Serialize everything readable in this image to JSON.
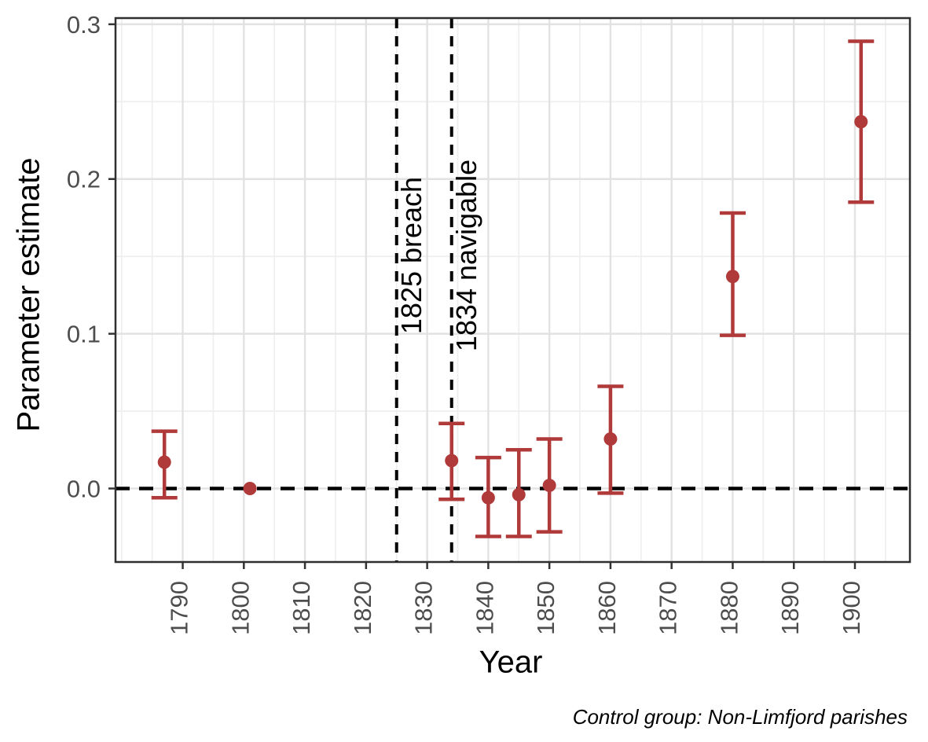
{
  "chart_data": {
    "type": "scatter",
    "title": "",
    "xlabel": "Year",
    "ylabel": "Parameter estimate",
    "caption": "Control group: Non-Limfjord parishes",
    "xlim": [
      1779,
      1909
    ],
    "ylim": [
      -0.0475,
      0.304
    ],
    "x_ticks": [
      1790,
      1800,
      1810,
      1820,
      1830,
      1840,
      1850,
      1860,
      1870,
      1880,
      1890,
      1900
    ],
    "x_minor_step": 5,
    "y_ticks": [
      {
        "value": 0.0,
        "label": "0.0"
      },
      {
        "value": 0.1,
        "label": "0.1"
      },
      {
        "value": 0.2,
        "label": "0.2"
      },
      {
        "value": 0.3,
        "label": "0.3"
      }
    ],
    "y_minor": [
      0.05,
      0.15,
      0.25
    ],
    "grid": "major+minor",
    "legend": "none",
    "series": [
      {
        "name": "parameter-estimates-with-95pct-ci",
        "points": [
          {
            "x": 1787,
            "y": 0.017,
            "ci_low": -0.006,
            "ci_high": 0.037
          },
          {
            "x": 1801,
            "y": 0.0,
            "ci_low": null,
            "ci_high": null,
            "reference": true
          },
          {
            "x": 1834,
            "y": 0.018,
            "ci_low": -0.007,
            "ci_high": 0.042
          },
          {
            "x": 1840,
            "y": -0.006,
            "ci_low": -0.031,
            "ci_high": 0.02
          },
          {
            "x": 1845,
            "y": -0.004,
            "ci_low": -0.031,
            "ci_high": 0.025
          },
          {
            "x": 1850,
            "y": 0.002,
            "ci_low": -0.028,
            "ci_high": 0.032
          },
          {
            "x": 1860,
            "y": 0.032,
            "ci_low": -0.003,
            "ci_high": 0.066
          },
          {
            "x": 1880,
            "y": 0.137,
            "ci_low": 0.099,
            "ci_high": 0.178
          },
          {
            "x": 1901,
            "y": 0.237,
            "ci_low": 0.185,
            "ci_high": 0.289
          }
        ]
      }
    ],
    "reference_lines": {
      "horizontal": [
        {
          "y": 0.0,
          "style": "dashed"
        }
      ],
      "vertical": [
        {
          "x": 1825,
          "label": "1825 breach",
          "style": "dashed"
        },
        {
          "x": 1834,
          "label": "1834 navigable",
          "style": "dashed"
        }
      ]
    },
    "colors": {
      "point": "#b03a3a",
      "reference_line": "#000000",
      "grid_major": "#e2e2e2",
      "grid_minor": "#efefef",
      "axis_text": "#4d4d4d",
      "axis_title": "#000000",
      "panel_border": "#2f2f2f",
      "tick": "#333333",
      "background": "#ffffff"
    }
  }
}
